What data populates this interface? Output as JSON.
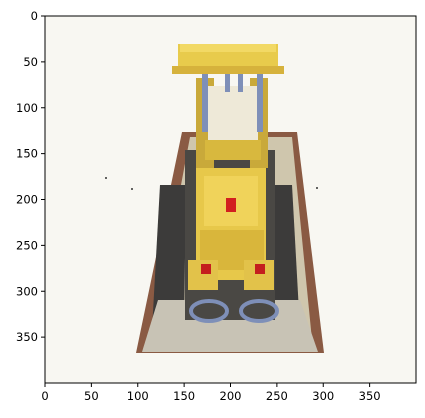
{
  "axes": {
    "x_ticks": [
      0,
      50,
      100,
      150,
      200,
      250,
      300,
      350
    ],
    "y_ticks": [
      0,
      50,
      100,
      150,
      200,
      250,
      300,
      350
    ],
    "x_range": [
      0,
      400
    ],
    "y_range": [
      400,
      0
    ],
    "y_inverted": true
  },
  "image": {
    "subject": "lego-bulldozer-render",
    "background_color": "#f7f5ef",
    "colors": {
      "body_yellow": "#e7c84a",
      "dark_yellow": "#c4a12d",
      "brown_base": "#8a5a43",
      "tan_plate": "#cfc6ad",
      "dark_track": "#3c3b3a",
      "blue_parts": "#7e8fb8",
      "red_parts": "#d21f1f"
    }
  }
}
